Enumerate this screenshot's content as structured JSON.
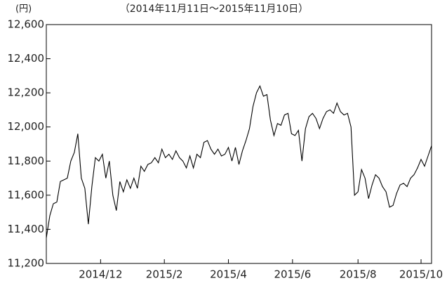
{
  "chart_data": {
    "type": "line",
    "unit_label": "(円)",
    "subtitle": "（2014年11月11日～2015年11月10日）",
    "series": [
      {
        "color": "#000000",
        "values": [
          11350,
          11480,
          11550,
          11560,
          11680,
          11690,
          11700,
          11800,
          11850,
          11960,
          11700,
          11640,
          11430,
          11650,
          11820,
          11800,
          11840,
          11700,
          11800,
          11600,
          11510,
          11680,
          11620,
          11690,
          11640,
          11700,
          11640,
          11770,
          11740,
          11780,
          11790,
          11820,
          11790,
          11870,
          11820,
          11840,
          11810,
          11860,
          11820,
          11800,
          11760,
          11830,
          11760,
          11840,
          11820,
          11910,
          11920,
          11870,
          11840,
          11870,
          11830,
          11840,
          11880,
          11800,
          11880,
          11780,
          11860,
          11920,
          11990,
          12120,
          12200,
          12240,
          12180,
          12190,
          12040,
          11950,
          12020,
          12010,
          12070,
          12080,
          11960,
          11950,
          11980,
          11800,
          11990,
          12060,
          12080,
          12050,
          11990,
          12050,
          12090,
          12100,
          12080,
          12140,
          12090,
          12070,
          12080,
          12000,
          11600,
          11620,
          11750,
          11700,
          11580,
          11660,
          11720,
          11700,
          11650,
          11620,
          11530,
          11540,
          11610,
          11660,
          11670,
          11650,
          11700,
          11720,
          11760,
          11810,
          11770,
          11830,
          11890
        ]
      }
    ],
    "xlim": [
      0,
      110
    ],
    "xticks": [
      {
        "value": 15.5,
        "label": "2014/12"
      },
      {
        "value": 33.7,
        "label": "2015/2"
      },
      {
        "value": 52,
        "label": "2015/4"
      },
      {
        "value": 70.3,
        "label": "2015/6"
      },
      {
        "value": 89,
        "label": "2015/8"
      },
      {
        "value": 107,
        "label": "2015/10"
      }
    ],
    "ylim": [
      11200,
      12600
    ],
    "yticks": [
      {
        "value": 11200,
        "label": "11,200"
      },
      {
        "value": 11400,
        "label": "11,400"
      },
      {
        "value": 11600,
        "label": "11,600"
      },
      {
        "value": 11800,
        "label": "11,800"
      },
      {
        "value": 12000,
        "label": "12,000"
      },
      {
        "value": 12200,
        "label": "12,200"
      },
      {
        "value": 12400,
        "label": "12,400"
      },
      {
        "value": 12600,
        "label": "12,600"
      }
    ]
  }
}
